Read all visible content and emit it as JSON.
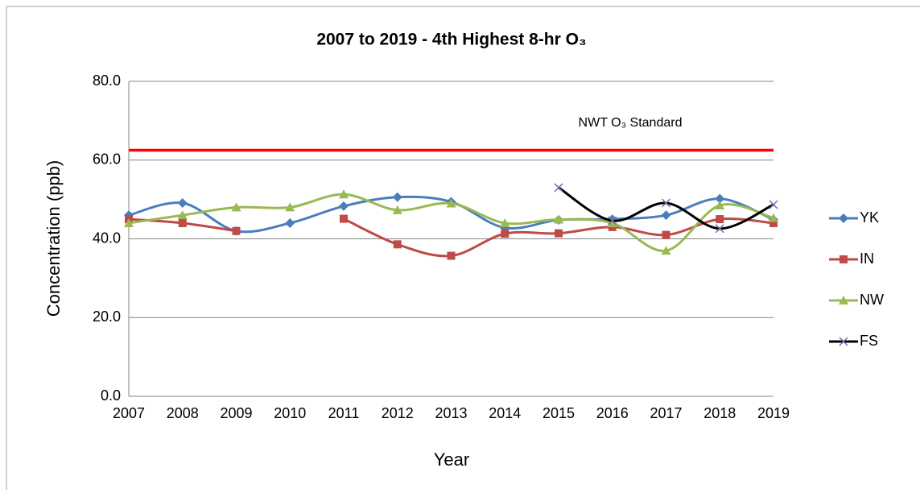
{
  "chart_data": {
    "type": "line",
    "title": "2007 to 2019 - 4th Highest 8-hr O₃",
    "x_label": "Year",
    "y_label": "Concentration (ppb)",
    "categories": [
      "2007",
      "2008",
      "2009",
      "2010",
      "2011",
      "2012",
      "2013",
      "2014",
      "2015",
      "2016",
      "2017",
      "2018",
      "2019"
    ],
    "series": [
      {
        "name": "YK",
        "color": "#4a7ebb",
        "marker": "diamond",
        "marker_color": "#4a7ebb",
        "values": [
          46.0,
          49.1,
          42.0,
          44.0,
          48.3,
          50.6,
          49.4,
          42.8,
          44.8,
          45.0,
          46.0,
          50.2,
          44.9
        ]
      },
      {
        "name": "IN",
        "color": "#be4b48",
        "marker": "square",
        "marker_color": "#be4b48",
        "values": [
          45.0,
          44.0,
          42.0,
          null,
          45.1,
          38.6,
          35.7,
          41.3,
          41.4,
          43.0,
          41.0,
          45.0,
          44.0
        ]
      },
      {
        "name": "NW",
        "color": "#98b954",
        "marker": "triangle",
        "marker_color": "#98b954",
        "values": [
          44.0,
          46.0,
          48.0,
          48.0,
          51.3,
          47.3,
          49.0,
          44.0,
          44.9,
          44.0,
          37.0,
          48.5,
          45.3
        ]
      },
      {
        "name": "FS",
        "color": "#000000",
        "marker": "x",
        "marker_color": "#7e6aa8",
        "values": [
          null,
          null,
          null,
          null,
          null,
          null,
          null,
          null,
          53.0,
          44.6,
          49.1,
          42.6,
          48.7
        ]
      }
    ],
    "standard": {
      "value": 62.5,
      "label": "NWT O₃ Standard",
      "color": "#ff0000"
    },
    "ylim": [
      0,
      80
    ],
    "yticks": [
      {
        "value": 0,
        "label": "0.0"
      },
      {
        "value": 20,
        "label": "20.0"
      },
      {
        "value": 40,
        "label": "40.0"
      },
      {
        "value": 60,
        "label": "60.0"
      },
      {
        "value": 80,
        "label": "80.0"
      }
    ],
    "grid": true,
    "legend": "right",
    "smooth": true
  }
}
